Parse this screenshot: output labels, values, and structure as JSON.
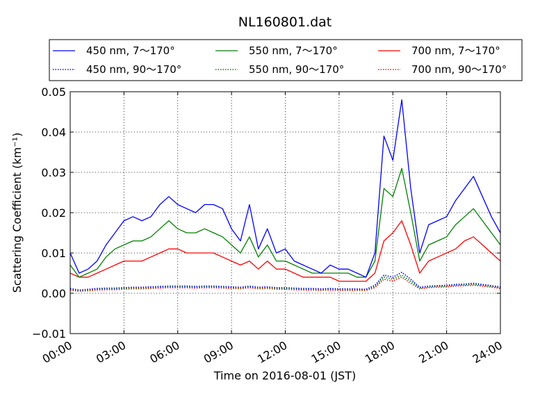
{
  "chart_data": {
    "type": "line",
    "title": "NL160801.dat",
    "xlabel": "Time on 2016-08-01 (JST)",
    "ylabel": "Scattering Coefficient (km⁻¹)",
    "xlim": [
      "00:00",
      "24:00"
    ],
    "ylim": [
      -0.01,
      0.05
    ],
    "grid": true,
    "legend_position": "top",
    "x_ticks": [
      "00:00",
      "03:00",
      "06:00",
      "09:00",
      "12:00",
      "15:00",
      "18:00",
      "21:00",
      "24:00"
    ],
    "y_ticks": [
      "−0.01",
      "0.00",
      "0.01",
      "0.02",
      "0.03",
      "0.04",
      "0.05"
    ],
    "x": [
      "00:00",
      "00:30",
      "01:00",
      "01:30",
      "02:00",
      "02:30",
      "03:00",
      "03:30",
      "04:00",
      "04:30",
      "05:00",
      "05:30",
      "06:00",
      "06:30",
      "07:00",
      "07:30",
      "08:00",
      "08:30",
      "09:00",
      "09:30",
      "10:00",
      "10:30",
      "11:00",
      "11:30",
      "12:00",
      "12:30",
      "13:00",
      "13:30",
      "14:00",
      "14:30",
      "15:00",
      "15:30",
      "16:00",
      "16:30",
      "17:00",
      "17:30",
      "18:00",
      "18:30",
      "19:00",
      "19:30",
      "20:00",
      "20:30",
      "21:00",
      "21:30",
      "22:00",
      "22:30",
      "23:00",
      "23:30",
      "24:00"
    ],
    "series": [
      {
        "name": "450 nm, 7～170°",
        "color": "#0000ff",
        "style": "solid",
        "values": [
          0.01,
          0.005,
          0.006,
          0.008,
          0.012,
          0.015,
          0.018,
          0.019,
          0.018,
          0.019,
          0.022,
          0.024,
          0.022,
          0.021,
          0.02,
          0.022,
          0.022,
          0.021,
          0.016,
          0.013,
          0.022,
          0.011,
          0.016,
          0.01,
          0.011,
          0.008,
          0.007,
          0.006,
          0.005,
          0.007,
          0.006,
          0.006,
          0.005,
          0.004,
          0.01,
          0.039,
          0.033,
          0.048,
          0.026,
          0.01,
          0.017,
          0.018,
          0.019,
          0.023,
          0.026,
          0.029,
          0.024,
          0.019,
          0.015
        ]
      },
      {
        "name": "450 nm, 90～170°",
        "color": "#0000ff",
        "style": "dotted",
        "values": [
          0.0012,
          0.0008,
          0.001,
          0.0012,
          0.0013,
          0.0013,
          0.0014,
          0.0015,
          0.0015,
          0.0016,
          0.0017,
          0.0018,
          0.0018,
          0.0018,
          0.0017,
          0.0018,
          0.0018,
          0.0017,
          0.0016,
          0.0015,
          0.0018,
          0.0015,
          0.0016,
          0.0014,
          0.0014,
          0.0013,
          0.0012,
          0.0012,
          0.0011,
          0.0012,
          0.0011,
          0.0011,
          0.0011,
          0.001,
          0.002,
          0.0045,
          0.004,
          0.0052,
          0.0035,
          0.0015,
          0.0018,
          0.0019,
          0.002,
          0.0022,
          0.0023,
          0.0025,
          0.0022,
          0.0019,
          0.0016
        ]
      },
      {
        "name": "550 nm, 7～170°",
        "color": "#008000",
        "style": "solid",
        "values": [
          0.007,
          0.004,
          0.005,
          0.006,
          0.009,
          0.011,
          0.012,
          0.013,
          0.013,
          0.014,
          0.016,
          0.018,
          0.016,
          0.015,
          0.015,
          0.016,
          0.015,
          0.014,
          0.012,
          0.01,
          0.014,
          0.009,
          0.012,
          0.008,
          0.008,
          0.007,
          0.006,
          0.005,
          0.005,
          0.005,
          0.005,
          0.005,
          0.004,
          0.004,
          0.008,
          0.026,
          0.024,
          0.031,
          0.02,
          0.008,
          0.012,
          0.013,
          0.014,
          0.017,
          0.019,
          0.021,
          0.018,
          0.015,
          0.012
        ]
      },
      {
        "name": "550 nm, 90～170°",
        "color": "#008000",
        "style": "dotted",
        "values": [
          0.001,
          0.0007,
          0.0008,
          0.001,
          0.0011,
          0.0011,
          0.0012,
          0.0013,
          0.0013,
          0.0014,
          0.0015,
          0.0016,
          0.0016,
          0.0016,
          0.0015,
          0.0016,
          0.0016,
          0.0015,
          0.0014,
          0.0013,
          0.0016,
          0.0013,
          0.0014,
          0.0012,
          0.0012,
          0.0011,
          0.001,
          0.001,
          0.0009,
          0.001,
          0.0009,
          0.0009,
          0.0009,
          0.0009,
          0.0017,
          0.004,
          0.0035,
          0.0045,
          0.003,
          0.0013,
          0.0016,
          0.0017,
          0.0018,
          0.002,
          0.0021,
          0.0022,
          0.002,
          0.0017,
          0.0014
        ]
      },
      {
        "name": "700 nm, 7～170°",
        "color": "#ff0000",
        "style": "solid",
        "values": [
          0.005,
          0.004,
          0.004,
          0.005,
          0.006,
          0.007,
          0.008,
          0.008,
          0.008,
          0.009,
          0.01,
          0.011,
          0.011,
          0.01,
          0.01,
          0.01,
          0.01,
          0.009,
          0.008,
          0.007,
          0.008,
          0.006,
          0.008,
          0.006,
          0.006,
          0.005,
          0.004,
          0.004,
          0.004,
          0.004,
          0.003,
          0.003,
          0.003,
          0.003,
          0.005,
          0.013,
          0.015,
          0.018,
          0.012,
          0.005,
          0.008,
          0.009,
          0.01,
          0.011,
          0.013,
          0.014,
          0.012,
          0.01,
          0.008
        ]
      },
      {
        "name": "700 nm, 90～170°",
        "color": "#ff0000",
        "style": "dotted",
        "values": [
          0.0008,
          0.0005,
          0.0006,
          0.0008,
          0.0009,
          0.0009,
          0.001,
          0.0011,
          0.0011,
          0.0012,
          0.0013,
          0.0014,
          0.0014,
          0.0014,
          0.0013,
          0.0014,
          0.0014,
          0.0013,
          0.0012,
          0.0011,
          0.0014,
          0.0011,
          0.0012,
          0.001,
          0.001,
          0.0009,
          0.0008,
          0.0008,
          0.0007,
          0.0008,
          0.0007,
          0.0007,
          0.0007,
          0.0007,
          0.0014,
          0.0035,
          0.003,
          0.004,
          0.0025,
          0.0011,
          0.0014,
          0.0015,
          0.0016,
          0.0018,
          0.0019,
          0.002,
          0.0018,
          0.0015,
          0.0012
        ]
      }
    ]
  }
}
